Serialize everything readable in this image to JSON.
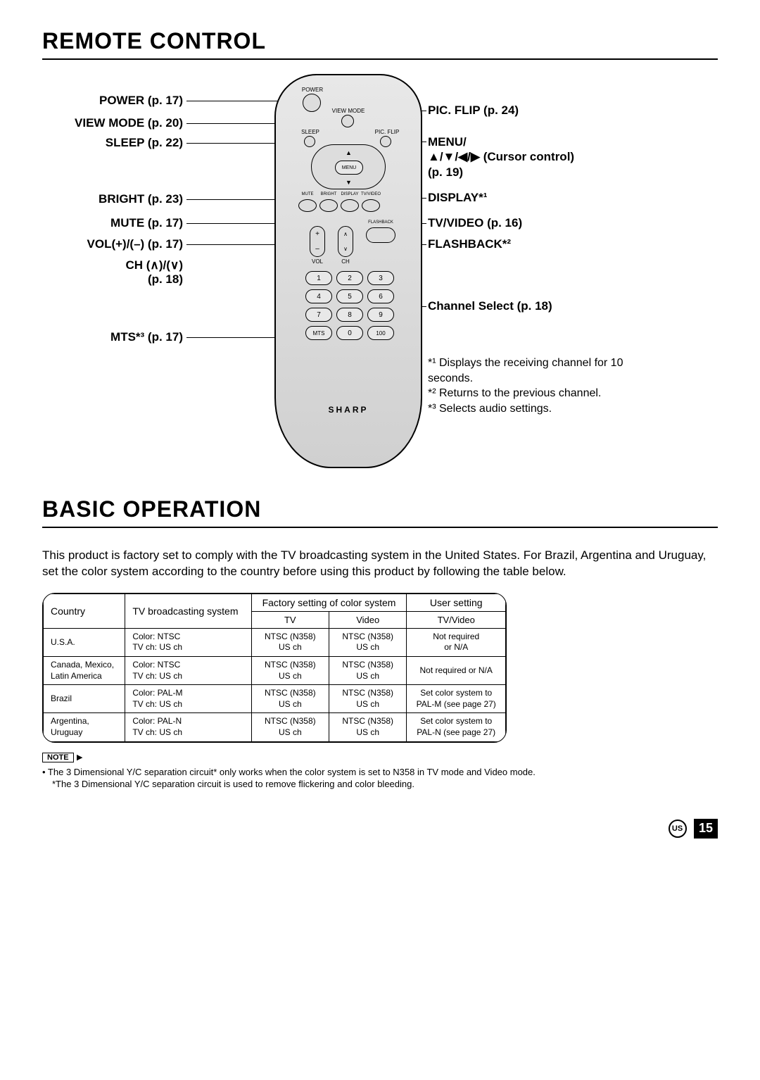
{
  "sections": {
    "remote_title": "REMOTE CONTROL",
    "basic_title": "BASIC OPERATION"
  },
  "callouts_left": {
    "power": "POWER (p. 17)",
    "view_mode": "VIEW MODE (p. 20)",
    "sleep": "SLEEP (p. 22)",
    "bright": "BRIGHT (p. 23)",
    "mute": "MUTE (p. 17)",
    "vol": "VOL(+)/(–) (p. 17)",
    "ch_line1": "CH (∧)/(∨)",
    "ch_line2": "(p. 18)",
    "mts": "MTS*³ (p. 17)"
  },
  "callouts_right": {
    "pic_flip": "PIC. FLIP (p. 24)",
    "menu_line1": "MENU/",
    "menu_line2": "▲/▼/◀/▶  (Cursor control)",
    "menu_line3": "(p. 19)",
    "display": "DISPLAY*¹",
    "tvvideo": "TV/VIDEO (p. 16)",
    "flashback": "FLASHBACK*²",
    "channel_select": "Channel Select (p. 18)"
  },
  "footnotes": {
    "f1": "*¹ Displays the receiving channel for 10 seconds.",
    "f2": "*² Returns to the previous channel.",
    "f3": "*³ Selects audio settings."
  },
  "remote": {
    "power_lbl": "POWER",
    "view_mode_lbl": "VIEW MODE",
    "sleep_lbl": "SLEEP",
    "pic_flip_lbl": "PIC. FLIP",
    "menu_lbl": "MENU",
    "tiny": {
      "mute": "MUTE",
      "bright": "BRIGHT",
      "display": "DISPLAY",
      "tvvideo": "TV/VIDEO"
    },
    "vol_lbl": "VOL",
    "ch_lbl": "CH",
    "flashback_lbl": "FLASHBACK",
    "keys": [
      "1",
      "2",
      "3",
      "4",
      "5",
      "6",
      "7",
      "8",
      "9",
      "MTS",
      "0",
      "100"
    ],
    "brand": "SHARP"
  },
  "basic": {
    "intro": "This product is factory set to comply with the TV broadcasting system in the United States. For Brazil, Argentina and Uruguay, set the color system according to the country before using this product by following the table below.",
    "headers": {
      "country": "Country",
      "tvb": "TV broadcasting system",
      "factory": "Factory setting of color system",
      "tv": "TV",
      "video": "Video",
      "user": "User setting",
      "user_sub": "TV/Video"
    },
    "rows": [
      {
        "country": "U.S.A.",
        "sys": "Color: NTSC\nTV ch: US ch",
        "tv": "NTSC (N358)\nUS ch",
        "video": "NTSC (N358)\nUS ch",
        "user": "Not required\nor N/A"
      },
      {
        "country": "Canada, Mexico,\nLatin America",
        "sys": "Color: NTSC\nTV ch: US ch",
        "tv": "NTSC (N358)\nUS ch",
        "video": "NTSC (N358)\nUS ch",
        "user": "Not required or N/A"
      },
      {
        "country": "Brazil",
        "sys": "Color: PAL-M\nTV ch: US ch",
        "tv": "NTSC (N358)\nUS ch",
        "video": "NTSC (N358)\nUS ch",
        "user": "Set color system to\nPAL-M (see page 27)"
      },
      {
        "country": "Argentina,\nUruguay",
        "sys": "Color: PAL-N\nTV ch: US ch",
        "tv": "NTSC (N358)\nUS ch",
        "video": "NTSC (N358)\nUS ch",
        "user": "Set color system to\nPAL-N (see page 27)"
      }
    ],
    "note_label": "NOTE",
    "note1": "• The 3 Dimensional Y/C separation circuit* only works when the color system is set to N358 in TV mode and Video mode.",
    "note2": "*The 3 Dimensional Y/C separation circuit is used to remove flickering and color bleeding."
  },
  "page": {
    "region": "US",
    "num": "15"
  }
}
